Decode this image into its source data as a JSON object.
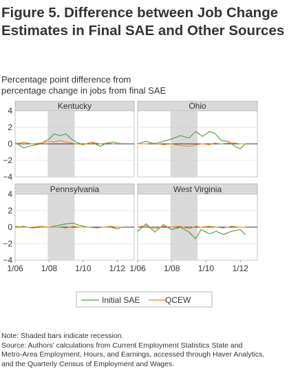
{
  "title_line1": "Figure 5. Difference between Job Change",
  "title_line2": "Estimates in Final SAE and Other Sources",
  "subtitle_line1": "Percentage point difference from",
  "subtitle_line2": "percentage change in jobs from final SAE",
  "note": "Note: Shaded bars indicate recession.",
  "source_line1": "Source: Authors' calculations from Current Employment Statistics State and",
  "source_line2": "Metro-Area Employment, Hours, and Earnings, accessed through Haver Analytics,",
  "source_line3": "and the Quarterly Census of Employment and Wages.",
  "colors": {
    "initial_sae": "#4a9a3c",
    "qcew": "#f0871e",
    "recession": "#d9d9d9",
    "header": "#d9d9d9",
    "grid": "#cccccc"
  },
  "chart_data": {
    "type": "line",
    "ylim": [
      -4,
      4
    ],
    "y_ticks": [
      "4",
      "2",
      "0",
      "−2",
      "−4"
    ],
    "x_ticks": [
      "1/06",
      "1/08",
      "1/10",
      "1/12"
    ],
    "x_tick_values": [
      2006,
      2008,
      2010,
      2012
    ],
    "xlim": [
      2006,
      2013
    ],
    "recession": [
      2007.92,
      2009.5
    ],
    "legend": [
      "Initial SAE",
      "QCEW"
    ],
    "legend_position": "bottom-center",
    "panels": [
      {
        "name": "Kentucky",
        "x": [
          2006.0,
          2006.5,
          2007.0,
          2007.5,
          2008.0,
          2008.3,
          2008.6,
          2009.0,
          2009.3,
          2009.6,
          2010.0,
          2010.5,
          2011.0,
          2011.4,
          2011.8,
          2012.2
        ],
        "series": [
          {
            "name": "Initial SAE",
            "values": [
              0.2,
              -0.5,
              -0.2,
              0.0,
              0.6,
              1.2,
              1.0,
              1.2,
              0.6,
              0.2,
              -0.1,
              0.2,
              -0.3,
              0.1,
              0.2,
              0.0
            ]
          },
          {
            "name": "QCEW",
            "values": [
              0.0,
              0.2,
              0.0,
              0.1,
              0.3,
              0.2,
              0.4,
              0.2,
              0.1,
              0.0,
              -0.1,
              0.2,
              0.0,
              0.1,
              0.0,
              0.1
            ]
          }
        ]
      },
      {
        "name": "Ohio",
        "x": [
          2006.0,
          2006.5,
          2007.0,
          2007.5,
          2008.0,
          2008.5,
          2009.0,
          2009.4,
          2009.8,
          2010.2,
          2010.5,
          2010.9,
          2011.3,
          2011.7,
          2012.0,
          2012.3
        ],
        "series": [
          {
            "name": "Initial SAE",
            "values": [
              0.0,
              0.3,
              0.0,
              0.3,
              0.6,
              1.0,
              0.7,
              1.5,
              0.9,
              1.5,
              1.3,
              0.4,
              0.3,
              -0.3,
              -0.6,
              0.0
            ]
          },
          {
            "name": "QCEW",
            "values": [
              0.0,
              0.0,
              0.1,
              -0.1,
              0.0,
              -0.2,
              -0.3,
              -0.1,
              0.0,
              -0.1,
              0.1,
              0.0,
              0.1,
              0.1,
              0.0,
              0.0
            ]
          }
        ]
      },
      {
        "name": "Pennsylvania",
        "x": [
          2006.0,
          2006.5,
          2007.0,
          2007.5,
          2008.0,
          2008.5,
          2009.0,
          2009.4,
          2009.8,
          2010.3,
          2010.8,
          2011.2,
          2011.6,
          2012.0,
          2012.3
        ],
        "series": [
          {
            "name": "Initial SAE",
            "values": [
              0.0,
              0.1,
              -0.1,
              0.0,
              0.0,
              0.2,
              0.4,
              0.5,
              0.2,
              0.0,
              -0.1,
              0.0,
              0.0,
              -0.2,
              0.0
            ]
          },
          {
            "name": "QCEW",
            "values": [
              0.1,
              0.0,
              0.0,
              0.1,
              0.0,
              0.0,
              -0.1,
              0.1,
              0.0,
              0.0,
              -0.1,
              0.0,
              0.1,
              0.0,
              0.0
            ]
          }
        ]
      },
      {
        "name": "West Virginia",
        "x": [
          2006.0,
          2006.5,
          2007.0,
          2007.5,
          2008.0,
          2008.5,
          2009.0,
          2009.4,
          2009.7,
          2010.2,
          2010.6,
          2011.0,
          2011.5,
          2012.0,
          2012.3
        ],
        "series": [
          {
            "name": "Initial SAE",
            "values": [
              -0.5,
              0.4,
              -0.6,
              0.3,
              -0.3,
              0.0,
              -0.6,
              -1.4,
              -0.3,
              -0.8,
              -0.5,
              -0.9,
              -0.5,
              -0.3,
              -0.9
            ]
          },
          {
            "name": "QCEW",
            "values": [
              0.0,
              0.2,
              -0.2,
              0.1,
              0.0,
              0.1,
              -0.2,
              0.1,
              0.0,
              0.1,
              0.0,
              -0.1,
              0.1,
              0.0,
              0.0
            ]
          }
        ]
      }
    ]
  }
}
